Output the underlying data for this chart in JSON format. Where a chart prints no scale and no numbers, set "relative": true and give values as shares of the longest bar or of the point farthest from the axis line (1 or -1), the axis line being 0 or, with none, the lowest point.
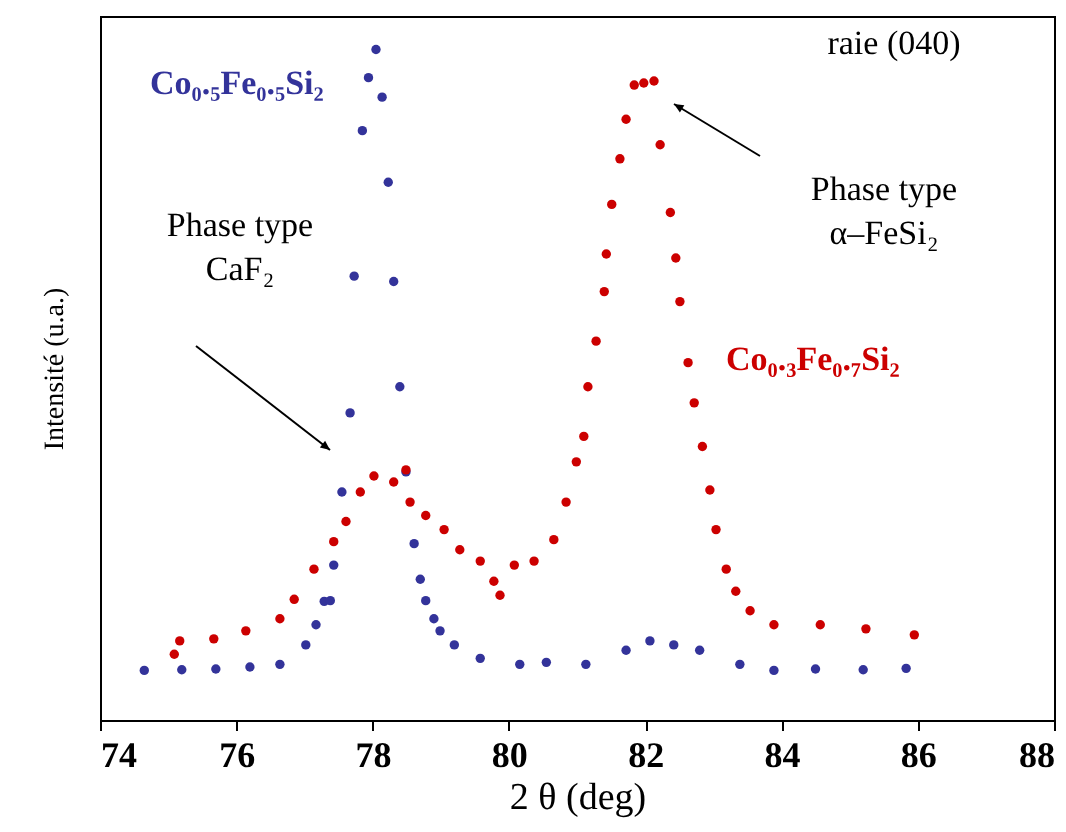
{
  "chart_data": {
    "type": "scatter",
    "xlabel": "2 θ (deg)",
    "ylabel": "Intensité (u.a.)",
    "relative": true,
    "xlim": [
      74,
      88
    ],
    "xticks": [
      74,
      76,
      78,
      80,
      82,
      84,
      86,
      88
    ],
    "marker": "circle",
    "grid": false,
    "annotations": [
      "raie (040)",
      "Phase type\nCaF₂",
      "Phase type\nα–FeSi₂"
    ],
    "series": [
      {
        "name": "Co₀.₅Fe₀.₅Si₂",
        "color": "#33339a",
        "x": [
          74.65,
          75.2,
          75.7,
          76.2,
          76.64,
          77.02,
          77.17,
          77.29,
          77.38,
          77.43,
          77.55,
          77.67,
          77.73,
          77.85,
          77.94,
          78.05,
          78.14,
          78.23,
          78.31,
          78.4,
          78.49,
          78.61,
          78.7,
          78.78,
          78.9,
          78.99,
          79.2,
          79.58,
          80.16,
          80.55,
          81.13,
          81.72,
          82.07,
          82.42,
          82.8,
          83.39,
          83.89,
          84.5,
          85.2,
          85.83
        ],
        "values": [
          0.074,
          0.075,
          0.076,
          0.079,
          0.083,
          0.112,
          0.142,
          0.177,
          0.178,
          0.231,
          0.34,
          0.458,
          0.662,
          0.879,
          0.958,
          1.0,
          0.929,
          0.802,
          0.654,
          0.497,
          0.37,
          0.263,
          0.21,
          0.178,
          0.151,
          0.133,
          0.112,
          0.092,
          0.083,
          0.086,
          0.083,
          0.104,
          0.118,
          0.112,
          0.104,
          0.083,
          0.074,
          0.076,
          0.075,
          0.077
        ]
      },
      {
        "name": "Co₀.₃Fe₀.₇Si₂",
        "color": "#cc0000",
        "x": [
          75.09,
          75.17,
          75.67,
          76.14,
          76.64,
          76.85,
          77.14,
          77.43,
          77.61,
          77.82,
          78.02,
          78.31,
          78.49,
          78.55,
          78.78,
          79.05,
          79.28,
          79.58,
          79.78,
          79.87,
          80.08,
          80.37,
          80.66,
          80.84,
          80.99,
          81.1,
          81.16,
          81.28,
          81.4,
          81.43,
          81.51,
          81.63,
          81.72,
          81.84,
          81.98,
          82.13,
          82.22,
          82.37,
          82.45,
          82.51,
          82.63,
          82.72,
          82.84,
          82.95,
          83.04,
          83.19,
          83.33,
          83.54,
          83.89,
          84.57,
          85.24,
          85.95
        ],
        "values": [
          0.098,
          0.118,
          0.121,
          0.133,
          0.151,
          0.18,
          0.225,
          0.266,
          0.296,
          0.34,
          0.364,
          0.355,
          0.373,
          0.325,
          0.305,
          0.284,
          0.254,
          0.237,
          0.207,
          0.186,
          0.231,
          0.237,
          0.269,
          0.325,
          0.385,
          0.423,
          0.497,
          0.565,
          0.639,
          0.695,
          0.769,
          0.837,
          0.896,
          0.947,
          0.95,
          0.953,
          0.858,
          0.757,
          0.689,
          0.624,
          0.533,
          0.473,
          0.408,
          0.343,
          0.284,
          0.225,
          0.192,
          0.163,
          0.142,
          0.142,
          0.136,
          0.127
        ]
      }
    ]
  }
}
